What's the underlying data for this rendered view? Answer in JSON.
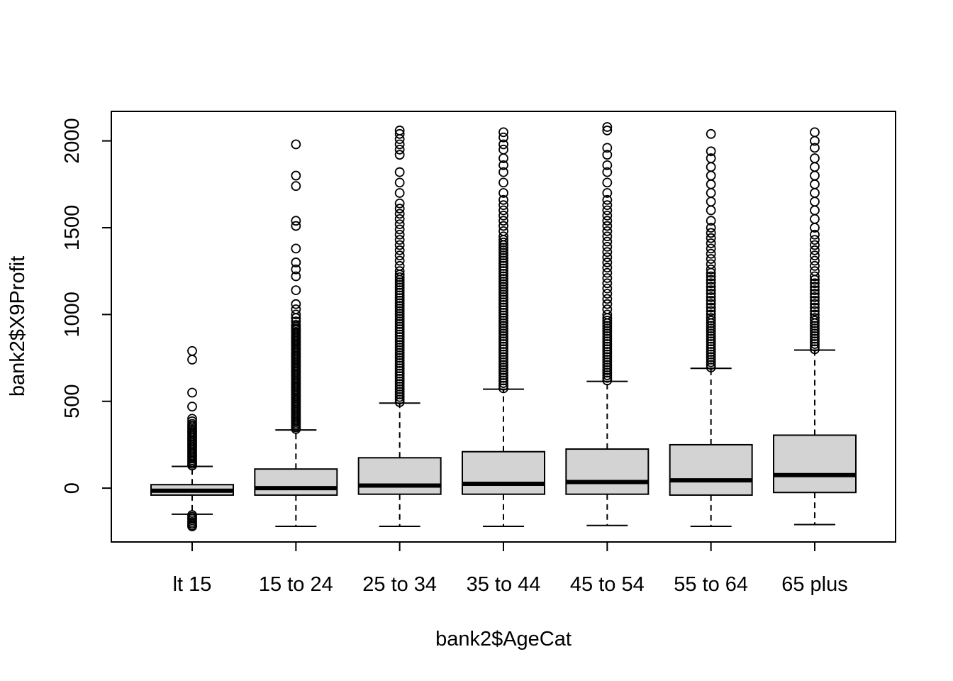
{
  "chart_data": {
    "type": "boxplot",
    "title": "",
    "xlabel": "bank2$AgeCat",
    "ylabel": "bank2$X9Profit",
    "ylim": [
      -310,
      2170
    ],
    "yticks": [
      0,
      500,
      1000,
      1500,
      2000
    ],
    "ytick_labels": [
      "0",
      "500",
      "1000",
      "1500",
      "2000"
    ],
    "grid": false,
    "legend": "none",
    "colors": {
      "box_fill": "#d3d3d3",
      "stroke": "#000000"
    },
    "categories": [
      "lt 15",
      "15 to 24",
      "25 to 34",
      "35 to 44",
      "45 to 54",
      "55 to 64",
      "65 plus"
    ],
    "boxes": [
      {
        "category": "lt 15",
        "whisker_low": -150,
        "q1": -40,
        "median": -15,
        "q3": 20,
        "whisker_high": 125,
        "outliers_high": [
          130,
          140,
          150,
          160,
          170,
          180,
          190,
          200,
          210,
          220,
          230,
          240,
          250,
          260,
          270,
          280,
          290,
          300,
          310,
          320,
          330,
          340,
          350,
          360,
          370,
          385,
          400,
          470,
          550,
          740,
          790
        ],
        "outliers_low": [
          -155,
          -165,
          -175,
          -185,
          -195,
          -205,
          -215,
          -220
        ]
      },
      {
        "category": "15 to 24",
        "whisker_low": -220,
        "q1": -40,
        "median": 0,
        "q3": 110,
        "whisker_high": 335,
        "outliers_high": [
          340,
          350,
          360,
          370,
          380,
          390,
          400,
          410,
          420,
          430,
          440,
          450,
          460,
          470,
          480,
          490,
          500,
          510,
          520,
          530,
          540,
          550,
          560,
          570,
          580,
          590,
          600,
          610,
          620,
          630,
          640,
          650,
          660,
          670,
          680,
          690,
          700,
          710,
          720,
          730,
          740,
          750,
          760,
          770,
          780,
          790,
          800,
          810,
          820,
          830,
          840,
          850,
          860,
          870,
          880,
          890,
          900,
          910,
          920,
          930,
          940,
          960,
          980,
          1000,
          1030,
          1060,
          1140,
          1220,
          1260,
          1300,
          1380,
          1510,
          1540,
          1740,
          1800,
          1980
        ],
        "outliers_low": []
      },
      {
        "category": "25 to 34",
        "whisker_low": -220,
        "q1": -35,
        "median": 15,
        "q3": 175,
        "whisker_high": 490,
        "outliers_high": [
          495,
          510,
          525,
          540,
          555,
          570,
          585,
          600,
          615,
          630,
          645,
          660,
          675,
          690,
          705,
          720,
          735,
          750,
          765,
          780,
          795,
          810,
          825,
          840,
          855,
          870,
          885,
          900,
          915,
          930,
          945,
          960,
          975,
          990,
          1005,
          1020,
          1035,
          1050,
          1065,
          1080,
          1095,
          1110,
          1125,
          1140,
          1155,
          1170,
          1185,
          1200,
          1215,
          1230,
          1250,
          1280,
          1310,
          1340,
          1370,
          1400,
          1430,
          1460,
          1490,
          1520,
          1550,
          1580,
          1610,
          1640,
          1700,
          1760,
          1820,
          1920,
          1950,
          1980,
          2010,
          2040,
          2060
        ],
        "outliers_low": []
      },
      {
        "category": "35 to 44",
        "whisker_low": -220,
        "q1": -35,
        "median": 25,
        "q3": 210,
        "whisker_high": 570,
        "outliers_high": [
          575,
          590,
          605,
          620,
          635,
          650,
          665,
          680,
          695,
          710,
          725,
          740,
          755,
          770,
          785,
          800,
          815,
          830,
          845,
          860,
          875,
          890,
          905,
          920,
          935,
          950,
          965,
          980,
          995,
          1010,
          1025,
          1040,
          1055,
          1070,
          1085,
          1100,
          1115,
          1130,
          1145,
          1160,
          1175,
          1190,
          1205,
          1220,
          1235,
          1250,
          1265,
          1280,
          1295,
          1310,
          1325,
          1340,
          1355,
          1370,
          1385,
          1400,
          1415,
          1430,
          1450,
          1480,
          1510,
          1540,
          1570,
          1600,
          1630,
          1660,
          1700,
          1760,
          1820,
          1860,
          1900,
          1950,
          1980,
          2020,
          2050
        ],
        "outliers_low": []
      },
      {
        "category": "45 to 54",
        "whisker_low": -215,
        "q1": -35,
        "median": 35,
        "q3": 225,
        "whisker_high": 615,
        "outliers_high": [
          620,
          635,
          650,
          665,
          680,
          695,
          710,
          725,
          740,
          755,
          770,
          785,
          800,
          815,
          830,
          845,
          860,
          875,
          890,
          905,
          920,
          935,
          950,
          965,
          980,
          1000,
          1030,
          1060,
          1090,
          1120,
          1150,
          1180,
          1210,
          1240,
          1270,
          1300,
          1330,
          1360,
          1390,
          1420,
          1450,
          1480,
          1510,
          1540,
          1570,
          1600,
          1630,
          1660,
          1700,
          1760,
          1820,
          1860,
          1920,
          1960,
          2060,
          2080
        ],
        "outliers_low": []
      },
      {
        "category": "55 to 64",
        "whisker_low": -220,
        "q1": -40,
        "median": 45,
        "q3": 250,
        "whisker_high": 690,
        "outliers_high": [
          695,
          710,
          725,
          740,
          755,
          770,
          785,
          800,
          815,
          830,
          845,
          860,
          875,
          890,
          905,
          920,
          935,
          950,
          965,
          980,
          1000,
          1020,
          1040,
          1060,
          1080,
          1100,
          1120,
          1140,
          1160,
          1180,
          1200,
          1220,
          1240,
          1260,
          1290,
          1320,
          1350,
          1380,
          1410,
          1440,
          1470,
          1500,
          1540,
          1600,
          1650,
          1700,
          1750,
          1800,
          1850,
          1900,
          1940,
          2040
        ],
        "outliers_low": []
      },
      {
        "category": "65 plus",
        "whisker_low": -210,
        "q1": -25,
        "median": 75,
        "q3": 305,
        "whisker_high": 795,
        "outliers_high": [
          800,
          815,
          830,
          845,
          860,
          875,
          890,
          905,
          920,
          935,
          950,
          965,
          980,
          1000,
          1020,
          1040,
          1060,
          1080,
          1100,
          1120,
          1140,
          1160,
          1180,
          1200,
          1220,
          1250,
          1280,
          1310,
          1340,
          1370,
          1400,
          1430,
          1460,
          1500,
          1550,
          1600,
          1650,
          1700,
          1750,
          1800,
          1850,
          1900,
          1960,
          2000,
          2050
        ],
        "outliers_low": []
      }
    ]
  }
}
